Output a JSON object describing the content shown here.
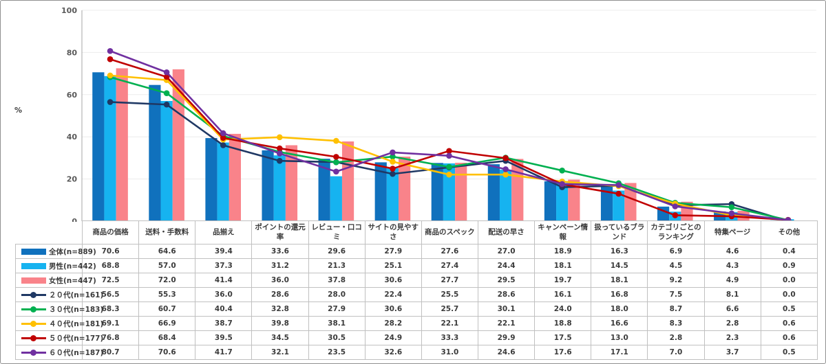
{
  "chart_data": {
    "type": "bar+line",
    "title": "",
    "ylabel": "%",
    "xlabel": "",
    "ylim": [
      0,
      100
    ],
    "yticks": [
      0,
      20,
      40,
      60,
      80,
      100
    ],
    "grid": "horizontal",
    "legend_position": "table-left-column",
    "categories": [
      "商品の価格",
      "送料・手数料",
      "品揃え",
      "ポイントの還元率",
      "レビュー・口コミ",
      "サイトの見やすさ",
      "商品のスペック",
      "配送の早さ",
      "キャンペーン情報",
      "扱っているブランド",
      "カテゴリごとのランキング",
      "特集ページ",
      "その他"
    ],
    "bar_series": [
      {
        "name": "全体(n=889)",
        "color": "#1071BD",
        "values": [
          70.6,
          64.6,
          39.4,
          33.6,
          29.6,
          27.9,
          27.6,
          27.0,
          18.9,
          16.3,
          6.9,
          4.6,
          0.4
        ]
      },
      {
        "name": "男性(n=442)",
        "color": "#16B3F0",
        "values": [
          68.8,
          57.0,
          37.3,
          31.2,
          21.3,
          25.1,
          27.4,
          24.4,
          18.1,
          14.5,
          4.5,
          4.3,
          0.9
        ]
      },
      {
        "name": "女性(n=447)",
        "color": "#F9838A",
        "values": [
          72.5,
          72.0,
          41.4,
          36.0,
          37.8,
          30.6,
          27.7,
          29.5,
          19.7,
          18.1,
          9.2,
          4.9,
          0.0
        ]
      }
    ],
    "line_series": [
      {
        "name": "２０代(n=161)",
        "color": "#1F3864",
        "values": [
          56.5,
          55.3,
          36.0,
          28.6,
          28.0,
          22.4,
          25.5,
          28.6,
          16.1,
          16.8,
          7.5,
          8.1,
          0.0
        ]
      },
      {
        "name": "３０代(n=183)",
        "color": "#00B050",
        "values": [
          68.3,
          60.7,
          40.4,
          32.8,
          27.9,
          30.6,
          25.7,
          30.1,
          24.0,
          18.0,
          8.7,
          6.6,
          0.5
        ]
      },
      {
        "name": "４０代(n=181)",
        "color": "#FFC000",
        "values": [
          69.1,
          66.9,
          38.7,
          39.8,
          38.1,
          28.2,
          22.1,
          22.1,
          18.8,
          16.6,
          8.3,
          2.8,
          0.6
        ]
      },
      {
        "name": "５０代(n=177)",
        "color": "#C00000",
        "values": [
          76.8,
          68.4,
          39.5,
          34.5,
          30.5,
          24.9,
          33.3,
          29.9,
          17.5,
          13.0,
          2.8,
          2.3,
          0.6
        ]
      },
      {
        "name": "６０代(n=187)",
        "color": "#7030A0",
        "values": [
          80.7,
          70.6,
          41.7,
          32.1,
          23.5,
          32.6,
          31.0,
          24.6,
          17.6,
          17.1,
          7.0,
          3.7,
          0.5
        ]
      }
    ],
    "axis_color": "#a6a6a6",
    "grid_color": "#ececec",
    "tick_text_color": "#595959",
    "table_border_color": "#c0c0c0"
  }
}
